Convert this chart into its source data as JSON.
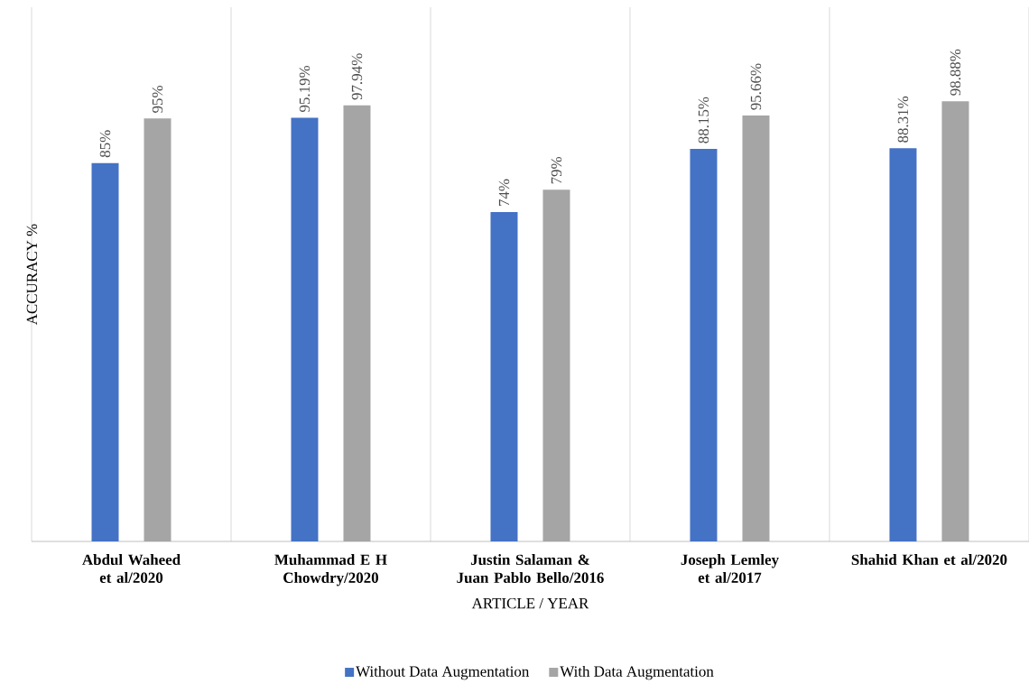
{
  "chart_data": {
    "type": "bar",
    "xlabel": "ARTICLE  / YEAR",
    "ylabel": "ACCURACY  %",
    "categories": [
      "Abdul Waheed et al/2020",
      "Muhammad E H Chowdry/2020",
      "Justin Salaman & Juan Pablo Bello/2016",
      "Joseph Lemley et al/2017",
      "Shahid Khan et al/2020"
    ],
    "series": [
      {
        "name": "Without Data Augmentation",
        "color": "#4472c4",
        "values": [
          85,
          95.19,
          74,
          88.15,
          88.31
        ],
        "value_labels": [
          "85%",
          "95.19%",
          "74%",
          "88.15%",
          "88.31%"
        ]
      },
      {
        "name": "With Data Augmentation",
        "color": "#a5a5a5",
        "values": [
          95,
          97.94,
          79,
          95.66,
          98.88
        ],
        "value_labels": [
          "95%",
          "97.94%",
          "79%",
          "95.66%",
          "98.88%"
        ]
      }
    ],
    "ylim": [
      0,
      120
    ],
    "grid": "x",
    "legend": "bottom",
    "tick_labels": "x"
  }
}
